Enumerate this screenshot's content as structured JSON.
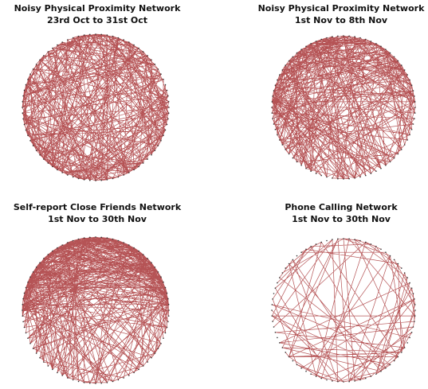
{
  "panels": [
    {
      "title": "Noisy Physical Proximity Network",
      "subtitle": "23rd Oct to 31st Oct"
    },
    {
      "title": "Noisy Physical Proximity Network",
      "subtitle": "1st Nov to 8th Nov"
    },
    {
      "title": "Self-report Close Friends Network",
      "subtitle": "1st Nov to 30th Nov"
    },
    {
      "title": "Phone Calling Network",
      "subtitle": "1st Nov to 30th Nov"
    }
  ]
}
